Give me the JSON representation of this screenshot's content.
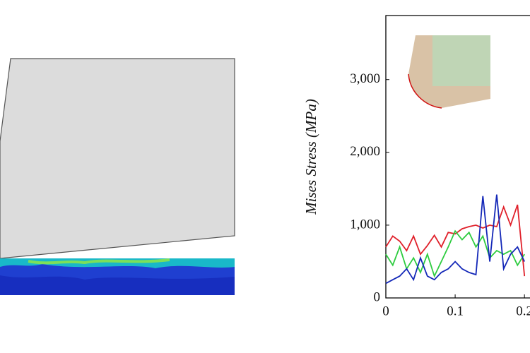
{
  "chart_data": {
    "type": "line",
    "y_label": "Mises Stress (MPa)",
    "x": [
      0,
      0.01,
      0.02,
      0.03,
      0.04,
      0.05,
      0.06,
      0.07,
      0.08,
      0.09,
      0.1,
      0.11,
      0.12,
      0.13,
      0.14,
      0.15,
      0.16,
      0.17,
      0.18,
      0.19,
      0.2
    ],
    "series": [
      {
        "color": "#e0202a",
        "values": [
          700,
          850,
          780,
          650,
          850,
          600,
          720,
          860,
          700,
          900,
          880,
          950,
          980,
          1000,
          960,
          1000,
          980,
          1250,
          1000,
          1280,
          300
        ]
      },
      {
        "color": "#2ecc40",
        "values": [
          600,
          450,
          700,
          400,
          550,
          350,
          600,
          300,
          500,
          700,
          920,
          800,
          900,
          700,
          850,
          550,
          650,
          600,
          650,
          450,
          600
        ]
      },
      {
        "color": "#1428b8",
        "values": [
          200,
          250,
          300,
          400,
          250,
          550,
          300,
          250,
          350,
          400,
          500,
          400,
          350,
          320,
          1400,
          500,
          1420,
          400,
          600,
          700,
          500
        ]
      }
    ],
    "xlim": [
      0,
      0.208
    ],
    "xticks": [
      0,
      0.1,
      0.2
    ],
    "ylim": [
      0,
      3880
    ],
    "yticks": [
      0,
      {
        "value": 1000,
        "label": "1,000"
      },
      {
        "value": 2000,
        "label": "2,000"
      },
      {
        "value": 3000,
        "label": "3,000"
      }
    ]
  }
}
